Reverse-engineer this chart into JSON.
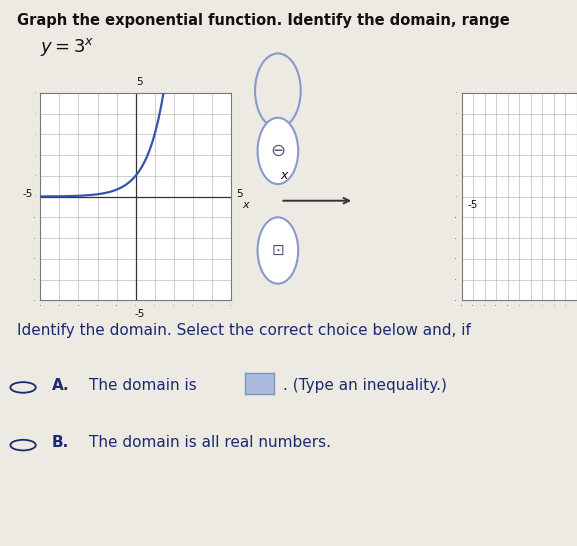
{
  "title_text": "Graph the exponential function. Identify the domain, range",
  "bg_color": "#ede9e3",
  "graph_bg": "#ffffff",
  "graph_xlim": [
    -5,
    5
  ],
  "graph_ylim": [
    -5,
    5
  ],
  "curve_color": "#3355aa",
  "curve_linewidth": 1.6,
  "grid_color": "#bbbbbb",
  "grid_linewidth": 0.5,
  "axis_color": "#333333",
  "domain_text": "Identify the domain. Select the correct choice below and, if",
  "choice_A_body": "The domain is",
  "choice_A_suffix": ". (Type an inequality.)",
  "choice_B_body": "The domain is all real numbers.",
  "box_color": "#aabbdd",
  "text_color": "#1a2a6e",
  "title_color": "#111111",
  "font_size_title": 10.5,
  "font_size_eq": 12,
  "font_size_body": 11,
  "separator_color": "#999999",
  "icon_color": "#6677aa",
  "icon_edge": "#8899cc"
}
